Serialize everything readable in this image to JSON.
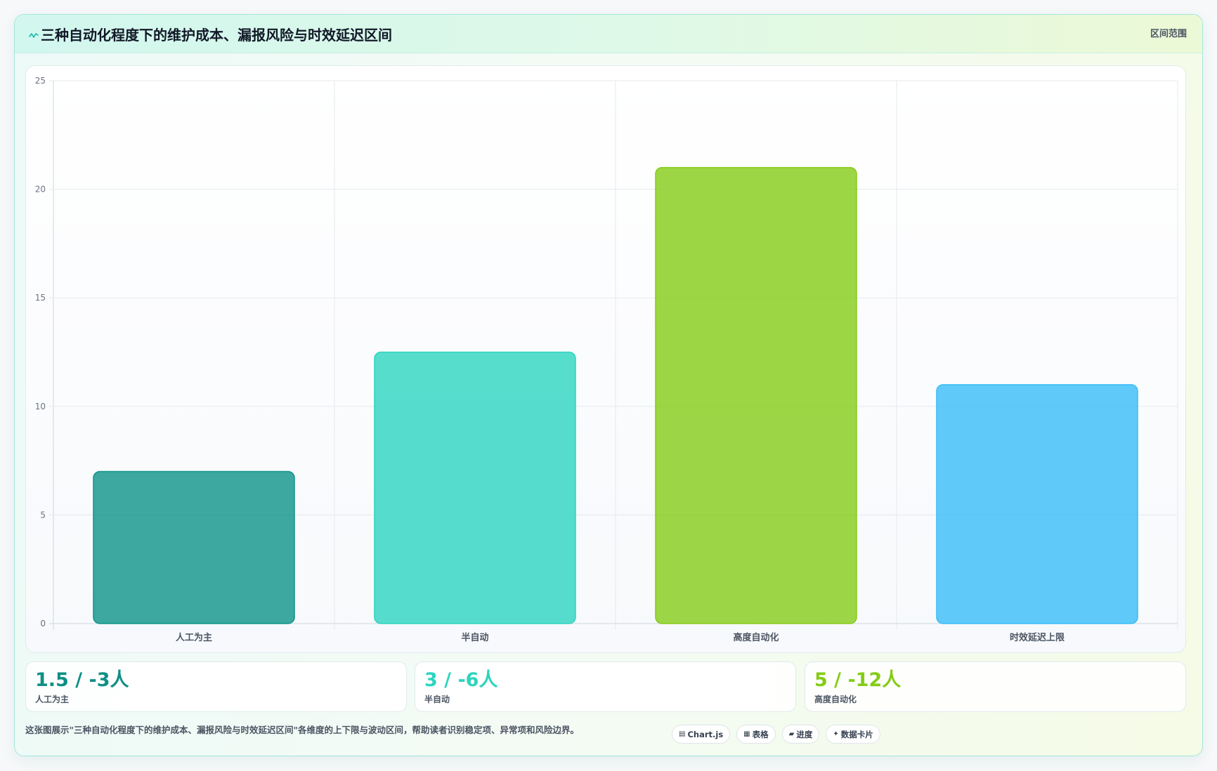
{
  "header": {
    "icon": "trend-icon",
    "badge": "区间范围"
  },
  "chart_data": {
    "type": "bar",
    "title": "三种自动化程度下的维护成本、漏报风险与时效延迟区间",
    "categories": [
      "人工为主",
      "半自动",
      "高度自动化",
      "时效延迟上限"
    ],
    "values": [
      7,
      12.5,
      21,
      11
    ],
    "colors": [
      "#0d9488",
      "#2dd4bf",
      "#84cc16",
      "#38bdf8"
    ],
    "ylim": [
      0,
      25
    ],
    "yticks": [
      0,
      5,
      10,
      15,
      20,
      25
    ],
    "grid": true
  },
  "cards": [
    {
      "value": "1.5 / -3人",
      "label": "人工为主",
      "color": "#0f8f85"
    },
    {
      "value": "3 / -6人",
      "label": "半自动",
      "color": "#2dd4bf"
    },
    {
      "value": "5 / -12人",
      "label": "高度自动化",
      "color": "#84cc16"
    }
  ],
  "footer": {
    "description": "这张图展示\"三种自动化程度下的维护成本、漏报风险与时效延迟区间\"各维度的上下限与波动区间，帮助读者识别稳定项、异常项和风险边界。",
    "tags": [
      {
        "icon": "chart-icon",
        "label": "Chart.js"
      },
      {
        "icon": "table-icon",
        "label": "表格"
      },
      {
        "icon": "progress-icon",
        "label": "进度"
      },
      {
        "icon": "sparkle-icon",
        "label": "数据卡片"
      }
    ]
  }
}
